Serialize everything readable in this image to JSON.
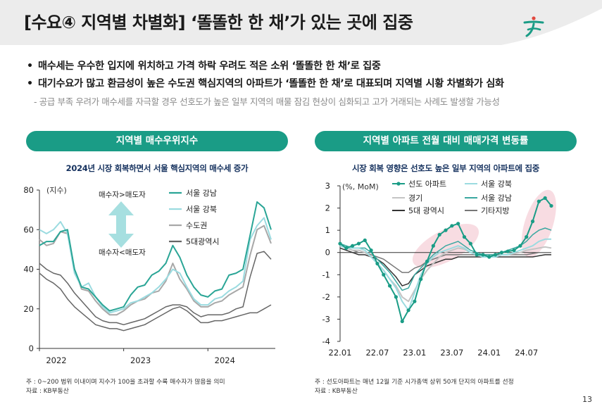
{
  "title": "[수요④ 지역별 차별화] ‘똘똘한 한 채’가 있는 곳에 집중",
  "bullets": [
    "매수세는 우수한 입지에 위치하고 가격 하락 우려도 적은 소위 ‘똘똘한 한 채’로 집중",
    "대기수요가 많고 환금성이 높은 수도권 핵심지역의 아파트가 ‘똘똘한 한 채’로 대표되며 지역별 시황 차별화가 심화"
  ],
  "bullet_marker": "•",
  "sub_bullet": "- 공급 부족 우려가 매수세를 자극할 경우 선호도가 높은 일부 지역의 매물 잠김 현상이 심화되고 고가 거래되는 사례도 발생할 가능성",
  "left": {
    "pill": "지역별 매수우위지수",
    "subtitle": "2024년 시장 회복하면서 서울 핵심지역의 매수세 증가",
    "note1": "주 : 0~200 범위 이내이며 지수가 100을 초과할 수록 매수자가 많음을 의미",
    "note2": "자료 : KB부동산"
  },
  "right": {
    "pill": "지역별 아파트 전월 대비 매매가격 변동률",
    "subtitle": "시장 회복 영향은 선호도 높은 일부 지역의 아파트에 집중",
    "note1": "주 : 선도아파트는 매년 12월 기준 시가총액 상위 50개 단지의 아파트를 선정",
    "note2": "자료 : KB부동산"
  },
  "page_number": "13",
  "colors": {
    "accent": "#1a9c86",
    "subtitle": "#15315e",
    "highlight": "#f6d3db"
  },
  "chart_data": [
    {
      "type": "line",
      "title": "지역별 매수우위지수",
      "ylabel": "(지수)",
      "ylim": [
        0,
        80
      ],
      "yticks": [
        "0",
        "20",
        "40",
        "60",
        "80"
      ],
      "xticks": [
        "2022",
        "2023",
        "2024"
      ],
      "annotation_up": "매수자>매도자",
      "annotation_down": "매수자<매도자",
      "x_start": "2022.01",
      "series": [
        {
          "name": "서울 강남",
          "color": "#2aa596",
          "width": 2,
          "values": [
            52,
            54,
            54,
            59,
            60,
            40,
            31,
            30,
            26,
            22,
            19,
            20,
            21,
            27,
            31,
            32,
            37,
            39,
            43,
            52,
            46,
            37,
            31,
            27,
            26,
            29,
            30,
            37,
            38,
            40,
            57,
            74,
            71,
            60
          ]
        },
        {
          "name": "서울 강북",
          "color": "#9bdbe0",
          "width": 2,
          "values": [
            60,
            58,
            60,
            64,
            58,
            38,
            31,
            33,
            26,
            21,
            18,
            19,
            20,
            23,
            24,
            26,
            28,
            31,
            35,
            40,
            38,
            31,
            25,
            22,
            22,
            25,
            26,
            29,
            31,
            34,
            55,
            62,
            66,
            55
          ]
        },
        {
          "name": "수도권",
          "color": "#a8a8a8",
          "width": 2,
          "values": [
            55,
            52,
            53,
            59,
            58,
            40,
            30,
            29,
            24,
            20,
            17,
            17,
            19,
            22,
            24,
            25,
            28,
            29,
            34,
            43,
            35,
            30,
            24,
            21,
            21,
            23,
            24,
            27,
            29,
            31,
            47,
            60,
            62,
            53
          ]
        },
        {
          "name": "5대광역시",
          "color": "#666666",
          "width": 1.5,
          "values": [
            43,
            40,
            38,
            37,
            33,
            28,
            24,
            20,
            16,
            14,
            13,
            13,
            12,
            13,
            14,
            15,
            17,
            19,
            21,
            22,
            22,
            21,
            18,
            16,
            17,
            17,
            17,
            18,
            20,
            21,
            36,
            48,
            49,
            45
          ]
        }
      ],
      "series_extra": [
        {
          "name": "5대광역시 (lower)",
          "values": [
            38,
            35,
            33,
            30,
            25,
            21,
            18,
            15,
            12,
            11,
            10,
            10,
            9,
            10,
            11,
            12,
            14,
            16,
            18,
            20,
            21,
            19,
            16,
            13,
            13,
            14,
            14,
            15,
            16,
            17,
            18,
            18,
            20,
            22
          ]
        }
      ]
    },
    {
      "type": "line",
      "title": "지역별 아파트 전월 대비 매매가격 변동률",
      "ylabel": "(%, MoM)",
      "ylim": [
        -4,
        3
      ],
      "yticks": [
        "-4",
        "-3",
        "-2",
        "-1",
        "0",
        "1",
        "2",
        "3"
      ],
      "xticks": [
        "22.01",
        "22.07",
        "23.01",
        "23.07",
        "24.01",
        "24.07"
      ],
      "x_start": "2022.01",
      "series": [
        {
          "name": "선도 아파트",
          "color": "#1a9c86",
          "width": 2,
          "markers": true,
          "values": [
            0.4,
            0.2,
            0.3,
            0.4,
            0.55,
            0.1,
            -0.5,
            -1.0,
            -1.5,
            -2.0,
            -3.1,
            -2.6,
            -2.2,
            -1.2,
            -0.4,
            0.3,
            0.8,
            1.0,
            1.2,
            1.3,
            0.7,
            0.4,
            -0.1,
            -0.1,
            -0.2,
            -0.1,
            0.0,
            0.05,
            0.1,
            0.3,
            0.7,
            1.4,
            2.3,
            2.45,
            2.1
          ]
        },
        {
          "name": "서울 강북",
          "color": "#9bdbe0",
          "width": 2,
          "values": [
            0.3,
            0.2,
            0.2,
            0.2,
            0.1,
            -0.2,
            -0.5,
            -0.8,
            -1.2,
            -1.6,
            -2.2,
            -2.6,
            -1.8,
            -1.0,
            -0.5,
            -0.2,
            0.0,
            0.1,
            0.2,
            0.3,
            0.2,
            0.0,
            -0.1,
            -0.2,
            -0.2,
            -0.2,
            -0.1,
            -0.1,
            0.0,
            0.1,
            0.2,
            0.3,
            0.5,
            0.6,
            0.6
          ]
        },
        {
          "name": "경기",
          "color": "#c4c4c4",
          "width": 2,
          "values": [
            0.3,
            0.2,
            0.1,
            0.1,
            0.0,
            -0.2,
            -0.5,
            -0.8,
            -1.2,
            -1.5,
            -2.0,
            -2.2,
            -1.7,
            -1.2,
            -0.8,
            -0.5,
            -0.2,
            0.0,
            0.1,
            0.2,
            0.15,
            0.0,
            -0.1,
            -0.2,
            -0.2,
            -0.2,
            -0.1,
            -0.1,
            -0.05,
            0.0,
            0.1,
            0.15,
            0.2,
            0.25,
            0.2
          ]
        },
        {
          "name": "서울 강남",
          "color": "#3aa8a0",
          "width": 1.5,
          "values": [
            0.4,
            0.3,
            0.2,
            0.2,
            0.2,
            0.0,
            -0.3,
            -0.6,
            -0.9,
            -1.3,
            -1.7,
            -1.6,
            -1.0,
            -0.7,
            -0.4,
            -0.1,
            0.1,
            0.3,
            0.4,
            0.5,
            0.3,
            0.1,
            0.0,
            -0.1,
            -0.1,
            -0.1,
            0.0,
            0.1,
            0.2,
            0.3,
            0.5,
            0.8,
            1.0,
            1.1,
            1.0
          ]
        },
        {
          "name": "5대 광역시",
          "color": "#333333",
          "width": 1.5,
          "values": [
            0.2,
            0.1,
            0.0,
            -0.1,
            -0.1,
            -0.2,
            -0.3,
            -0.5,
            -0.8,
            -1.1,
            -1.5,
            -1.4,
            -1.0,
            -0.8,
            -0.6,
            -0.5,
            -0.4,
            -0.3,
            -0.3,
            -0.2,
            -0.2,
            -0.2,
            -0.2,
            -0.2,
            -0.2,
            -0.2,
            -0.2,
            -0.2,
            -0.2,
            -0.2,
            -0.2,
            -0.2,
            -0.15,
            -0.1,
            -0.1
          ]
        },
        {
          "name": "기타지방",
          "color": "#777777",
          "width": 1.5,
          "values": [
            0.3,
            0.2,
            0.1,
            0.0,
            0.0,
            -0.1,
            -0.2,
            -0.3,
            -0.5,
            -0.7,
            -0.9,
            -0.9,
            -0.7,
            -0.6,
            -0.4,
            -0.3,
            -0.2,
            -0.1,
            -0.1,
            -0.1,
            -0.1,
            -0.1,
            -0.1,
            -0.1,
            -0.1,
            -0.1,
            -0.1,
            -0.1,
            -0.1,
            -0.1,
            -0.1,
            -0.05,
            0.0,
            0.0,
            0.0
          ]
        }
      ]
    }
  ]
}
